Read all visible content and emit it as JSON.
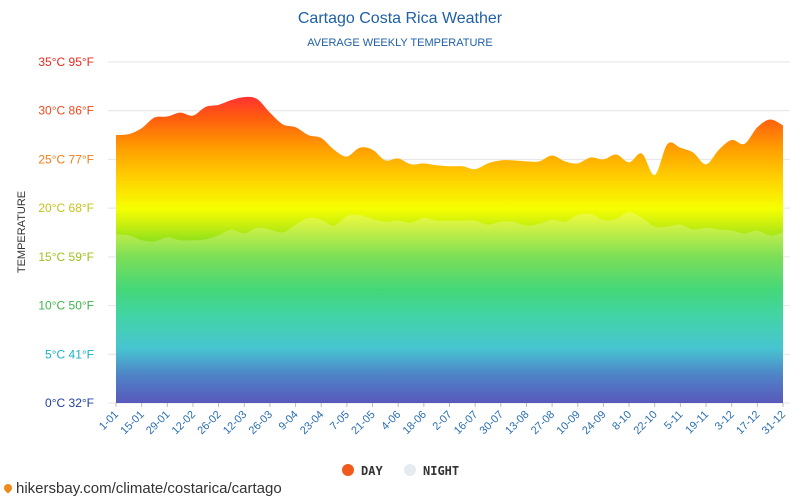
{
  "chart_data": {
    "type": "area",
    "title": "Cartago Costa Rica Weather",
    "subtitle": "AVERAGE WEEKLY TEMPERATURE",
    "ylabel": "TEMPERATURE",
    "xlabel": "",
    "ylim": [
      0,
      35
    ],
    "grid": true,
    "legend_position": "bottom-center",
    "y_ticks": [
      {
        "c": 0,
        "label": "0°C 32°F",
        "color": "#1e3fa0"
      },
      {
        "c": 5,
        "label": "5°C 41°F",
        "color": "#19b3c8"
      },
      {
        "c": 10,
        "label": "10°C 50°F",
        "color": "#3cb54a"
      },
      {
        "c": 15,
        "label": "15°C 59°F",
        "color": "#9bc21a"
      },
      {
        "c": 20,
        "label": "20°C 68°F",
        "color": "#c6c21a"
      },
      {
        "c": 25,
        "label": "25°C 77°F",
        "color": "#f07d1a"
      },
      {
        "c": 30,
        "label": "30°C 86°F",
        "color": "#ee4a1c"
      },
      {
        "c": 35,
        "label": "35°C 95°F",
        "color": "#e8281c"
      }
    ],
    "x_labels": [
      "1-01",
      "15-01",
      "29-01",
      "12-02",
      "26-02",
      "12-03",
      "26-03",
      "9-04",
      "23-04",
      "7-05",
      "21-05",
      "4-06",
      "18-06",
      "2-07",
      "16-07",
      "30-07",
      "13-08",
      "27-08",
      "10-09",
      "24-09",
      "8-10",
      "22-10",
      "5-11",
      "19-11",
      "3-12",
      "17-12",
      "31-12"
    ],
    "series": [
      {
        "name": "DAY",
        "legend_label": "DAY",
        "color": "#f05a1c",
        "values": [
          27.5,
          27.6,
          28.2,
          29.3,
          29.4,
          29.8,
          29.5,
          30.4,
          30.6,
          31.1,
          31.4,
          31.2,
          29.8,
          28.6,
          28.3,
          27.5,
          27.2,
          26.0,
          25.3,
          26.2,
          26.0,
          24.9,
          25.1,
          24.5,
          24.6,
          24.4,
          24.3,
          24.3,
          24.0,
          24.6,
          24.9,
          24.9,
          24.8,
          24.8,
          25.4,
          24.8,
          24.6,
          25.2,
          25.0,
          25.5,
          24.7,
          25.6,
          23.4,
          26.6,
          26.2,
          25.7,
          24.5,
          26.0,
          27.0,
          26.6,
          28.3,
          29.1,
          28.5
        ]
      },
      {
        "name": "NIGHT",
        "legend_label": "NIGHT",
        "color": "#e8edf3",
        "values": [
          17.3,
          17.2,
          16.7,
          16.6,
          17.0,
          16.7,
          16.7,
          16.8,
          17.2,
          17.8,
          17.4,
          18.0,
          17.8,
          17.5,
          18.3,
          19.0,
          18.8,
          18.2,
          19.2,
          19.3,
          18.9,
          18.6,
          18.7,
          18.5,
          19.0,
          18.7,
          18.7,
          18.7,
          18.7,
          18.3,
          18.6,
          18.6,
          18.2,
          18.4,
          18.8,
          18.6,
          19.3,
          19.4,
          18.8,
          18.9,
          19.6,
          19.0,
          18.1,
          18.1,
          18.3,
          17.8,
          18.0,
          17.8,
          17.7,
          17.4,
          17.7,
          17.2,
          17.5
        ]
      }
    ]
  },
  "source": {
    "text": "hikersbay.com/climate/costarica/cartago"
  }
}
